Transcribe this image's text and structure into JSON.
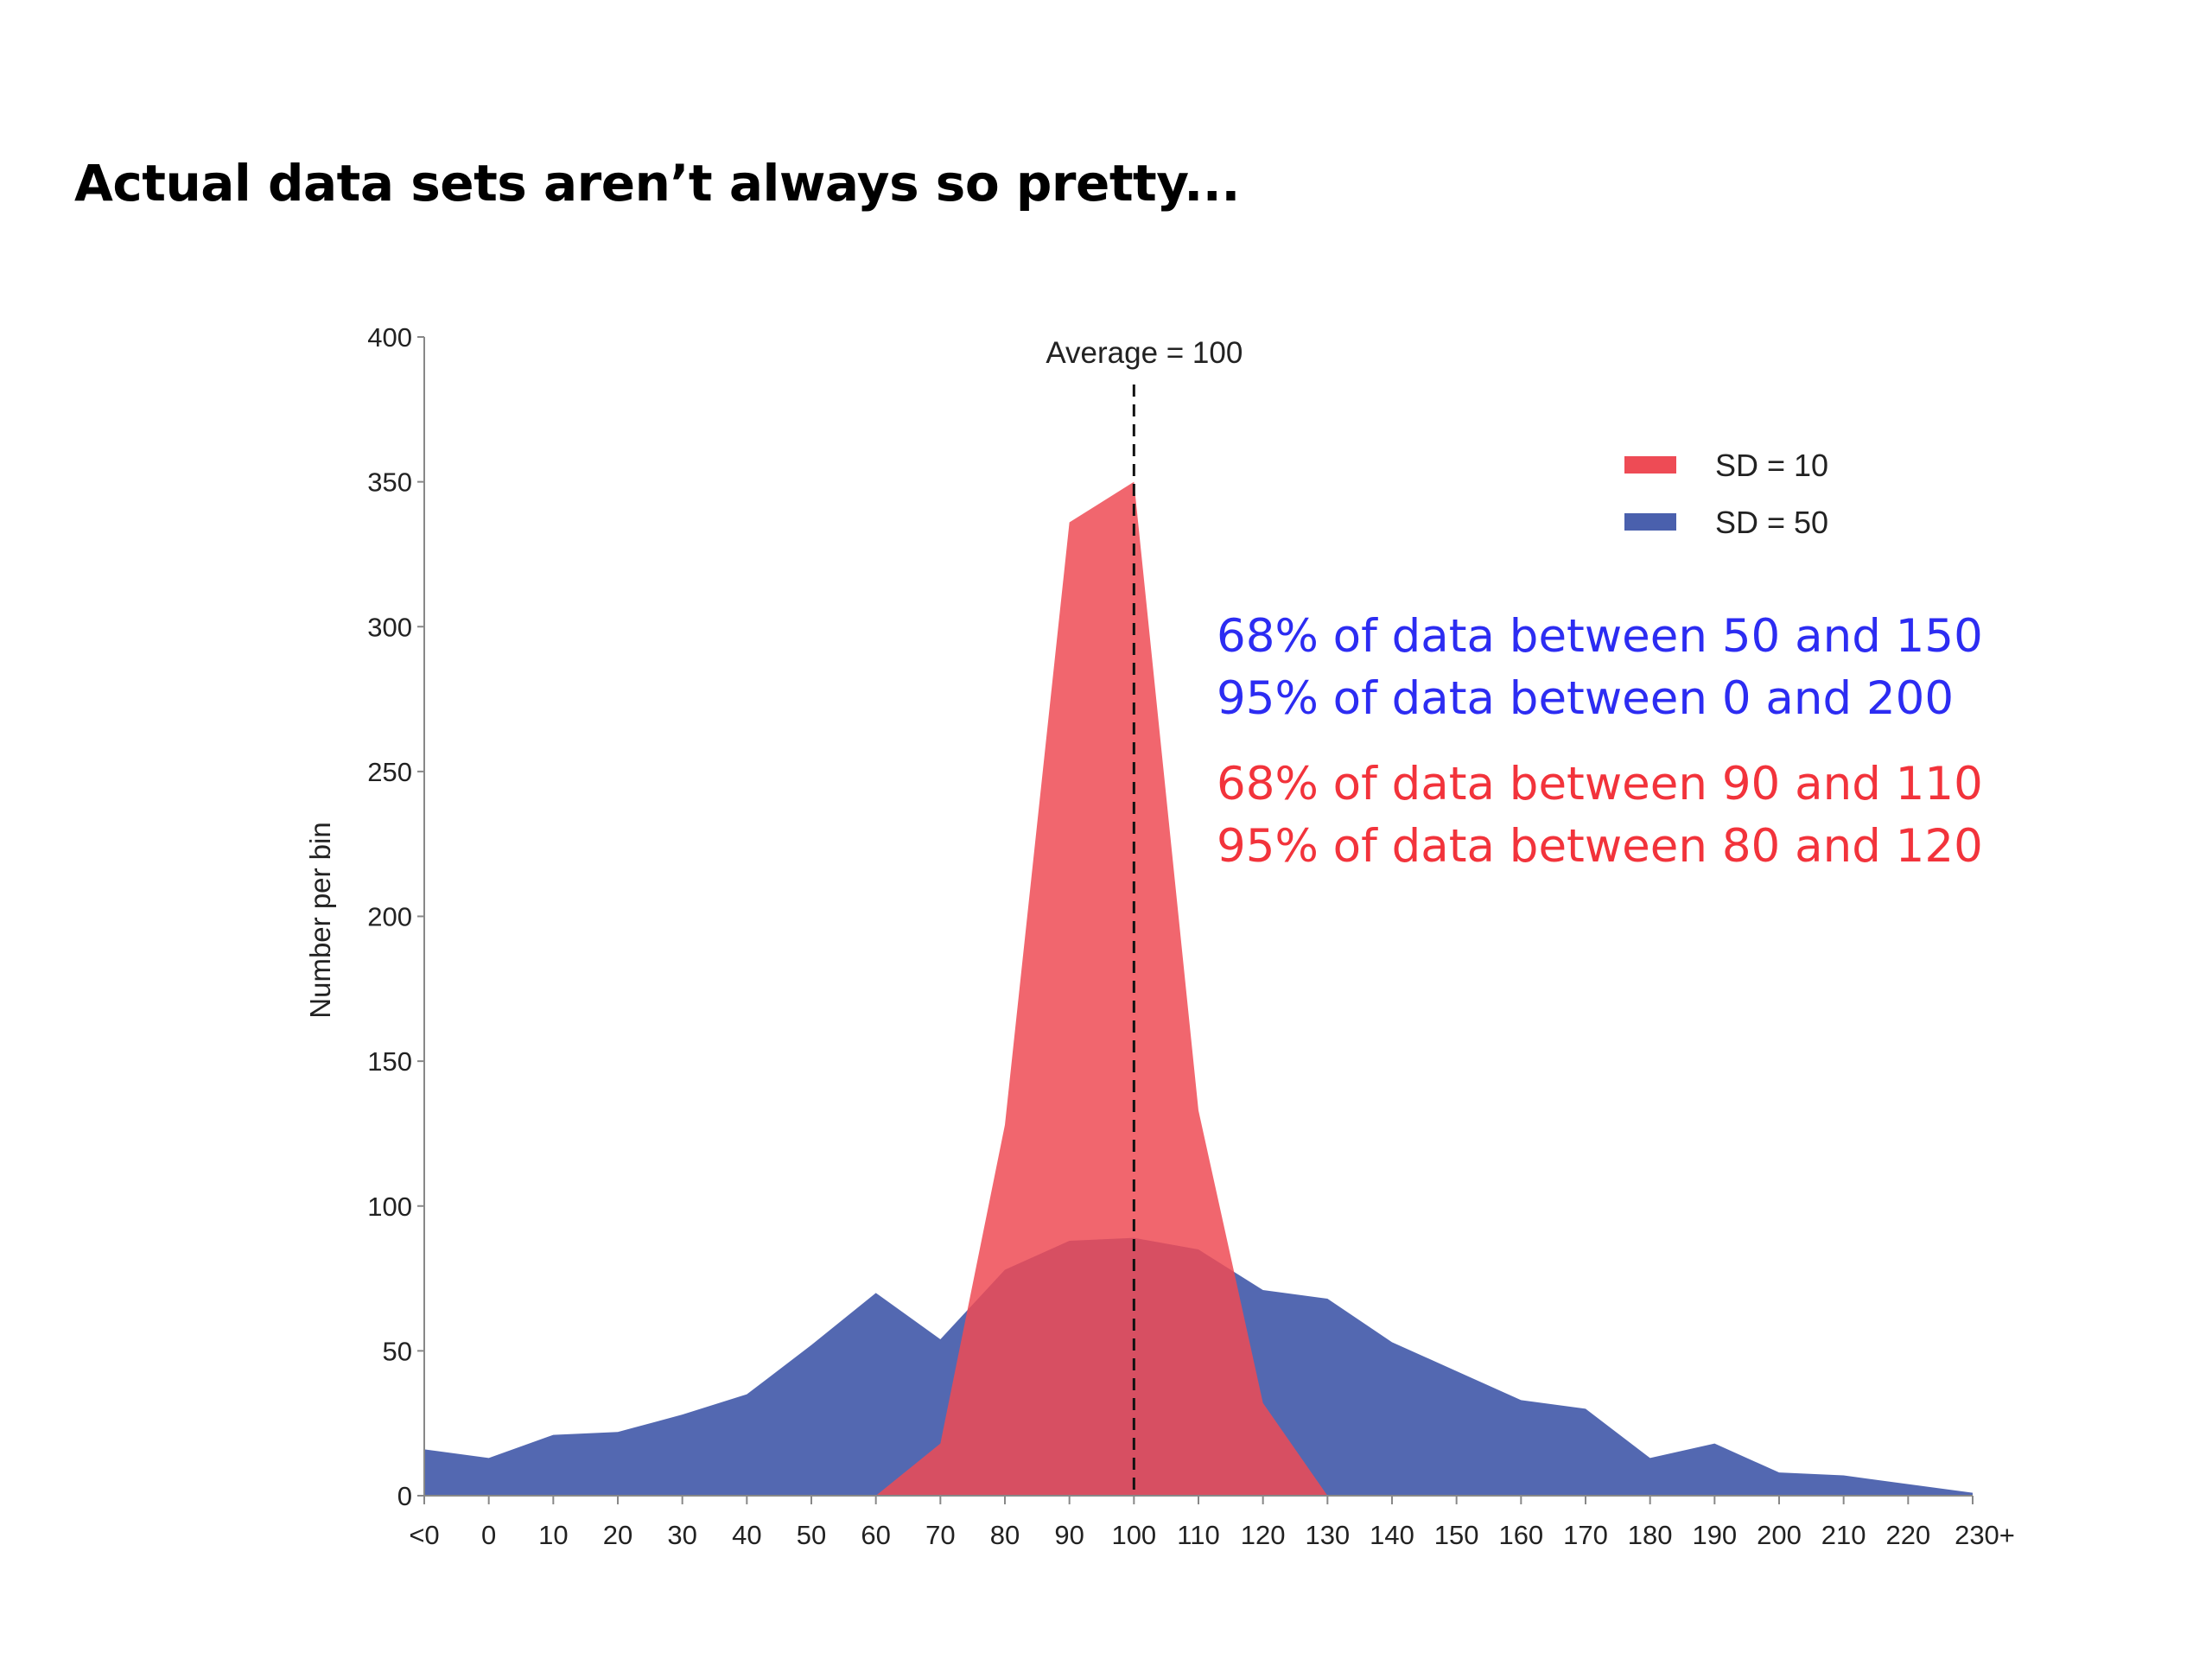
{
  "page": {
    "title": "Actual data sets aren’t always so pretty..."
  },
  "chart_data": {
    "type": "area",
    "title": "",
    "xlabel": "",
    "ylabel": "Number per bin",
    "ylim": [
      0,
      400
    ],
    "yticks": [
      0,
      50,
      100,
      150,
      200,
      250,
      300,
      350,
      400
    ],
    "categories": [
      "<0",
      "0",
      "10",
      "20",
      "30",
      "40",
      "50",
      "60",
      "70",
      "80",
      "90",
      "100",
      "110",
      "120",
      "130",
      "140",
      "150",
      "160",
      "170",
      "180",
      "190",
      "200",
      "210",
      "220",
      "230+"
    ],
    "series": [
      {
        "name": "SD = 50",
        "color": "#4a60ad",
        "values": [
          16,
          13,
          21,
          22,
          28,
          35,
          52,
          70,
          54,
          78,
          88,
          89,
          85,
          71,
          68,
          53,
          43,
          33,
          30,
          13,
          18,
          8,
          7,
          4,
          1
        ]
      },
      {
        "name": "SD = 10",
        "color": "#ee4b55",
        "values": [
          0,
          0,
          0,
          0,
          0,
          0,
          0,
          0,
          18,
          128,
          336,
          350,
          133,
          32,
          0,
          0,
          0,
          0,
          0,
          0,
          0,
          0,
          0,
          0,
          0
        ]
      }
    ],
    "legend_position": "top-right",
    "grid": false,
    "annotations": {
      "average_line": {
        "x": "100",
        "label": "Average = 100"
      },
      "notes": [
        {
          "text": "68% of data between 50 and 150",
          "color": "#2c2cf2"
        },
        {
          "text": "95% of data between 0 and 200",
          "color": "#2c2cf2"
        },
        {
          "text": "68% of data between 90 and 110",
          "color": "#f2333b"
        },
        {
          "text": "95% of data between 80 and 120",
          "color": "#f2333b"
        }
      ]
    }
  }
}
